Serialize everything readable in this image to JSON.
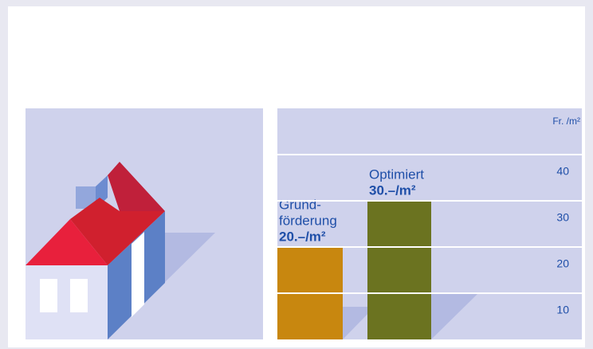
{
  "chart_data": {
    "type": "bar",
    "unit": "Fr. /m²",
    "categories": [
      [
        "Grund-",
        "förderung"
      ],
      [
        "Optimiert"
      ]
    ],
    "values": [
      20,
      30
    ],
    "value_labels": [
      "20.–/m²",
      "30.–/m²"
    ],
    "colors": [
      "#c8870f",
      "#6b7320"
    ],
    "ylim": [
      0,
      50
    ],
    "yticks": [
      10,
      20,
      30,
      40
    ],
    "grid": true
  }
}
